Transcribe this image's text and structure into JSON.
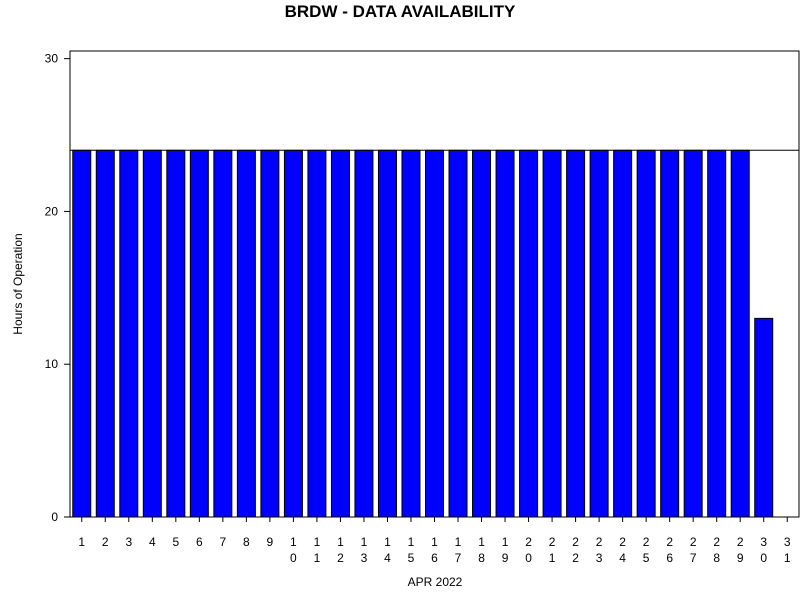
{
  "chart_data": {
    "type": "bar",
    "title": "BRDW - DATA AVAILABILITY",
    "x_label": "APR 2022",
    "y_label": "Hours of Operation",
    "categories": [
      "1",
      "2",
      "3",
      "4",
      "5",
      "6",
      "7",
      "8",
      "9",
      "10",
      "11",
      "12",
      "13",
      "14",
      "15",
      "16",
      "17",
      "18",
      "19",
      "20",
      "21",
      "22",
      "23",
      "24",
      "25",
      "26",
      "27",
      "28",
      "29",
      "30",
      "31"
    ],
    "values": [
      24,
      24,
      24,
      24,
      24,
      24,
      24,
      24,
      24,
      24,
      24,
      24,
      24,
      24,
      24,
      24,
      24,
      24,
      24,
      24,
      24,
      24,
      24,
      24,
      24,
      24,
      24,
      24,
      24,
      13,
      null
    ],
    "color": "#0000ff",
    "reference_line": 24,
    "ylim": [
      0,
      30.5
    ],
    "yticks": [
      0,
      10,
      20,
      30
    ]
  }
}
